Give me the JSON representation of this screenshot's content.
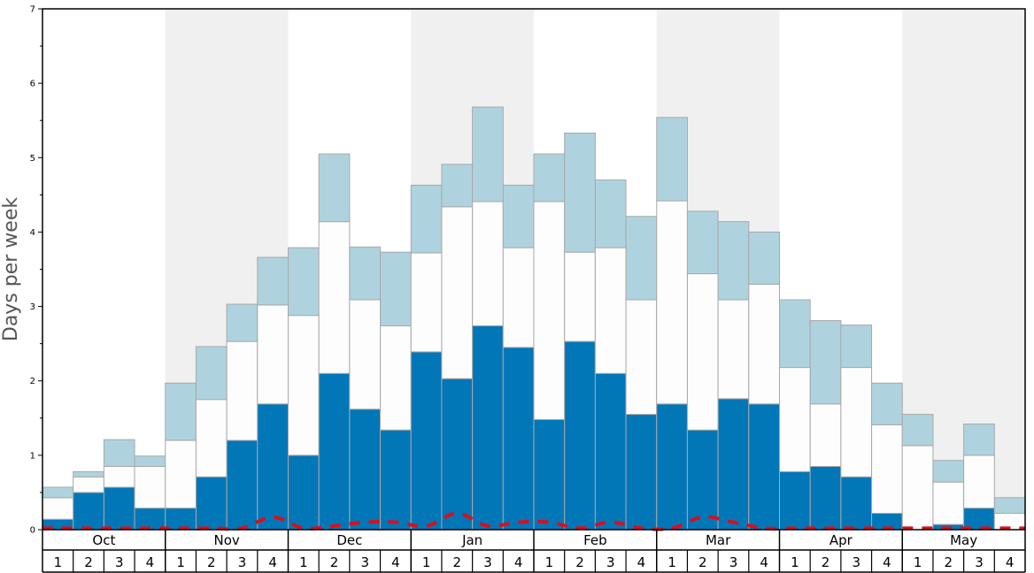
{
  "chart_data": {
    "type": "bar",
    "stacked": true,
    "ylabel": "Days per week",
    "ylim": [
      0,
      7
    ],
    "y_ticks": [
      0,
      1,
      2,
      3,
      4,
      5,
      6,
      7
    ],
    "months": [
      "Oct",
      "Nov",
      "Dec",
      "Jan",
      "Feb",
      "Mar",
      "Apr",
      "May"
    ],
    "weeks_per_month": 4,
    "week_labels": [
      "1",
      "2",
      "3",
      "4"
    ],
    "month_bands_shaded": [
      false,
      true,
      false,
      true,
      false,
      true,
      false,
      true
    ],
    "colors": {
      "dark": "#0277b8",
      "white": "#fdfdfd",
      "light": "#aed3df",
      "band": "#f0f0f0",
      "line": "#d90f1c",
      "edge": "#a8a8a8"
    },
    "series": [
      {
        "values": [
          0.14,
          0.5,
          0.57,
          0.29,
          0.29,
          0.71,
          1.2,
          1.69,
          1.0,
          2.1,
          1.62,
          1.34,
          2.39,
          2.03,
          2.74,
          2.45,
          1.48,
          2.53,
          2.1,
          1.55,
          1.69,
          1.34,
          1.76,
          1.69,
          0.78,
          0.85,
          0.71,
          0.22,
          0.0,
          0.07,
          0.29,
          0.0
        ]
      },
      {
        "values": [
          0.29,
          0.21,
          0.28,
          0.56,
          0.91,
          1.04,
          1.33,
          1.33,
          1.88,
          2.04,
          1.47,
          1.4,
          1.33,
          2.31,
          1.67,
          1.34,
          2.93,
          1.2,
          1.69,
          1.54,
          2.73,
          2.1,
          1.33,
          1.61,
          1.4,
          0.84,
          1.47,
          1.19,
          1.13,
          0.57,
          0.71,
          0.22
        ]
      },
      {
        "values": [
          0.14,
          0.07,
          0.36,
          0.14,
          0.77,
          0.71,
          0.5,
          0.64,
          0.91,
          0.91,
          0.71,
          0.99,
          0.91,
          0.57,
          1.27,
          0.84,
          0.64,
          1.6,
          0.91,
          1.12,
          1.12,
          0.84,
          1.05,
          0.7,
          0.91,
          1.12,
          0.57,
          0.56,
          0.42,
          0.29,
          0.42,
          0.21
        ]
      }
    ],
    "line_series": {
      "style": "dashed",
      "values": [
        0.02,
        0.02,
        0.02,
        0.02,
        0.02,
        0.02,
        0.02,
        0.17,
        0.02,
        0.05,
        0.1,
        0.1,
        0.05,
        0.22,
        0.05,
        0.1,
        0.1,
        0.02,
        0.1,
        0.02,
        0.02,
        0.17,
        0.1,
        0.02,
        0.02,
        0.02,
        0.02,
        0.02,
        0.02,
        0.02,
        0.02,
        0.02
      ]
    }
  }
}
